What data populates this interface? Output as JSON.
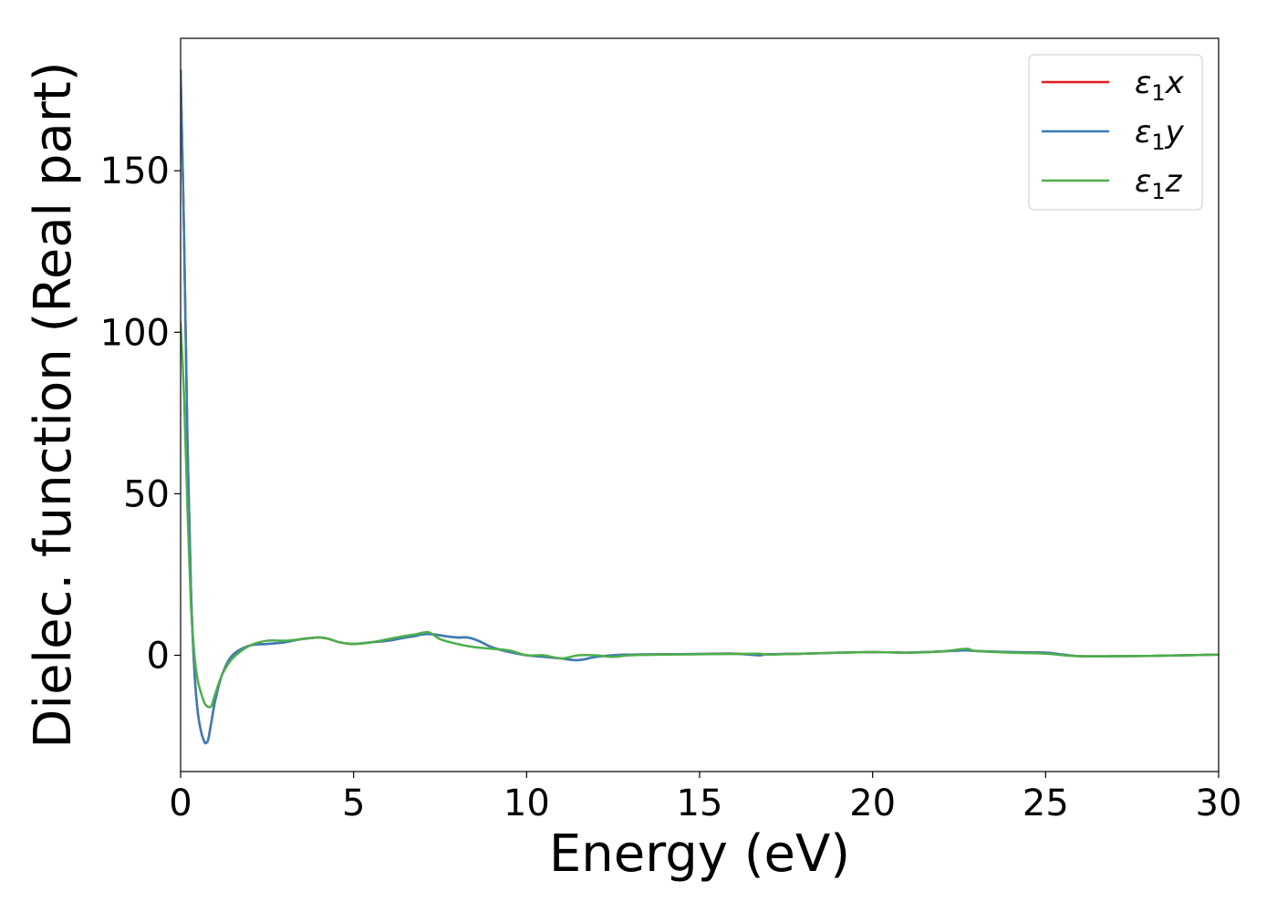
{
  "chart_data": {
    "type": "line",
    "title": "",
    "xlabel": "Energy (eV)",
    "ylabel": "Dielec. function (Real part)",
    "xlim": [
      0,
      30
    ],
    "ylim": [
      -36,
      191
    ],
    "xticks": [
      "0",
      "5",
      "10",
      "15",
      "20",
      "25",
      "30"
    ],
    "yticks": [
      "0",
      "50",
      "100",
      "150"
    ],
    "grid": false,
    "legend_position": "top-right",
    "series": [
      {
        "name": "ε₁x",
        "legend_base": "ε",
        "legend_sub": "1",
        "legend_suffix": "x",
        "color": "#e41a1c",
        "x": [
          0,
          0.1,
          0.2,
          0.3,
          0.4,
          0.5,
          0.6,
          0.7,
          0.75,
          0.8,
          0.9,
          1.0,
          1.2,
          1.5,
          2.0,
          2.5,
          3.0,
          3.5,
          4.0,
          4.3,
          4.6,
          5.0,
          5.5,
          6.0,
          6.5,
          6.8,
          7.0,
          7.3,
          7.6,
          8.0,
          8.3,
          8.6,
          9.0,
          9.5,
          10.0,
          10.5,
          11.0,
          11.5,
          12.0,
          12.5,
          13.0,
          14.0,
          15.0,
          16.0,
          16.7,
          17.0,
          18.0,
          19.0,
          20.0,
          21.0,
          22.0,
          22.7,
          23.0,
          24.0,
          25.0,
          25.5,
          26.0,
          27.0,
          28.0,
          29.0,
          30.0
        ],
        "y": [
          181,
          130,
          65,
          20,
          -5,
          -18,
          -24,
          -27,
          -27,
          -26,
          -20,
          -14,
          -6,
          0,
          3,
          3.5,
          4,
          5,
          5.5,
          5,
          4,
          3.5,
          4,
          4.5,
          5.5,
          6,
          6.5,
          6.5,
          6,
          5.5,
          5.5,
          4.5,
          2.5,
          1,
          0,
          -0.5,
          -1,
          -1.5,
          -0.5,
          0,
          0.2,
          0.3,
          0.4,
          0.5,
          0,
          0.3,
          0.5,
          0.8,
          1,
          0.8,
          1.2,
          1.5,
          1.3,
          1,
          0.8,
          0.2,
          -0.3,
          -0.3,
          -0.2,
          0,
          0.2
        ]
      },
      {
        "name": "ε₁y",
        "legend_base": "ε",
        "legend_sub": "1",
        "legend_suffix": "y",
        "color": "#377eb8",
        "x": [
          0,
          0.1,
          0.2,
          0.3,
          0.4,
          0.5,
          0.6,
          0.7,
          0.75,
          0.8,
          0.9,
          1.0,
          1.2,
          1.5,
          2.0,
          2.5,
          3.0,
          3.5,
          4.0,
          4.3,
          4.6,
          5.0,
          5.5,
          6.0,
          6.5,
          6.8,
          7.0,
          7.3,
          7.6,
          8.0,
          8.3,
          8.6,
          9.0,
          9.5,
          10.0,
          10.5,
          11.0,
          11.5,
          12.0,
          12.5,
          13.0,
          14.0,
          15.0,
          16.0,
          16.7,
          17.0,
          18.0,
          19.0,
          20.0,
          21.0,
          22.0,
          22.7,
          23.0,
          24.0,
          25.0,
          25.5,
          26.0,
          27.0,
          28.0,
          29.0,
          30.0
        ],
        "y": [
          181,
          130,
          65,
          20,
          -5,
          -18,
          -24,
          -27,
          -27,
          -26,
          -20,
          -14,
          -6,
          0,
          3,
          3.5,
          4,
          5,
          5.5,
          5,
          4,
          3.5,
          4,
          4.5,
          5.5,
          6,
          6.5,
          6.5,
          6,
          5.5,
          5.5,
          4.5,
          2.5,
          1,
          0,
          -0.5,
          -1,
          -1.5,
          -0.5,
          0,
          0.2,
          0.3,
          0.4,
          0.5,
          0,
          0.3,
          0.5,
          0.8,
          1,
          0.8,
          1.2,
          1.5,
          1.3,
          1,
          0.8,
          0.2,
          -0.3,
          -0.3,
          -0.2,
          0,
          0.2
        ]
      },
      {
        "name": "ε₁z",
        "legend_base": "ε",
        "legend_sub": "1",
        "legend_suffix": "z",
        "color": "#4daf4a",
        "x": [
          0,
          0.1,
          0.2,
          0.3,
          0.4,
          0.5,
          0.6,
          0.7,
          0.8,
          0.85,
          0.9,
          1.0,
          1.2,
          1.5,
          2.0,
          2.5,
          3.0,
          3.5,
          4.0,
          4.3,
          4.6,
          5.0,
          5.5,
          6.0,
          6.5,
          6.8,
          7.0,
          7.2,
          7.5,
          8.0,
          8.5,
          9.0,
          9.5,
          10.0,
          10.5,
          11.0,
          11.5,
          12.0,
          12.5,
          13.0,
          14.0,
          15.0,
          16.0,
          16.7,
          17.0,
          18.0,
          19.0,
          20.0,
          21.0,
          22.0,
          22.7,
          23.0,
          24.0,
          25.0,
          25.5,
          26.0,
          27.0,
          28.0,
          29.0,
          30.0
        ],
        "y": [
          103,
          80,
          45,
          15,
          0,
          -8,
          -12,
          -15,
          -16,
          -16,
          -15.5,
          -12,
          -6,
          -1,
          3,
          4.5,
          4.5,
          5,
          5.5,
          5,
          4,
          3.5,
          4,
          5,
          6,
          6.5,
          7,
          7,
          5,
          3.5,
          2.5,
          2,
          1.5,
          0,
          0,
          -1,
          0,
          0,
          -0.5,
          0,
          0.2,
          0.3,
          0.4,
          0.5,
          0.2,
          0.5,
          0.8,
          1,
          0.8,
          1.2,
          2,
          1.3,
          0.8,
          0.5,
          0,
          -0.3,
          -0.3,
          -0.2,
          0,
          0.2
        ]
      }
    ]
  }
}
